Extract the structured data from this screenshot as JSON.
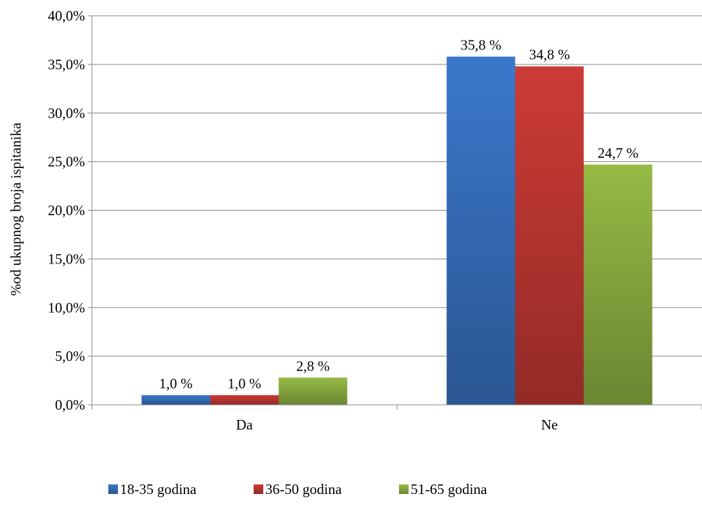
{
  "chart_data": {
    "type": "bar",
    "categories": [
      "Da",
      "Ne"
    ],
    "series": [
      {
        "name": "18-35 godina",
        "values": [
          1.0,
          35.8
        ],
        "labels": [
          "1,0 %",
          "35,8 %"
        ],
        "color": "#3b78cb"
      },
      {
        "name": "36-50 godina",
        "values": [
          1.0,
          34.8
        ],
        "labels": [
          "1,0 %",
          "34,8 %"
        ],
        "color": "#cd3b36"
      },
      {
        "name": "51-65 godina",
        "values": [
          2.8,
          24.7
        ],
        "labels": [
          "2,8 %",
          "24,7 %"
        ],
        "color": "#95ba45"
      }
    ],
    "ylabel": "%od ukupnog broja ispitanika",
    "ylim": [
      0,
      40
    ],
    "yticks": [
      0,
      5,
      10,
      15,
      20,
      25,
      30,
      35,
      40
    ],
    "ytick_labels": [
      "0,0%",
      "5,0%",
      "10,0%",
      "15,0%",
      "20,0%",
      "25,0%",
      "30,0%",
      "35,0%",
      "40,0%"
    ],
    "grid": true,
    "legend_position": "bottom"
  }
}
